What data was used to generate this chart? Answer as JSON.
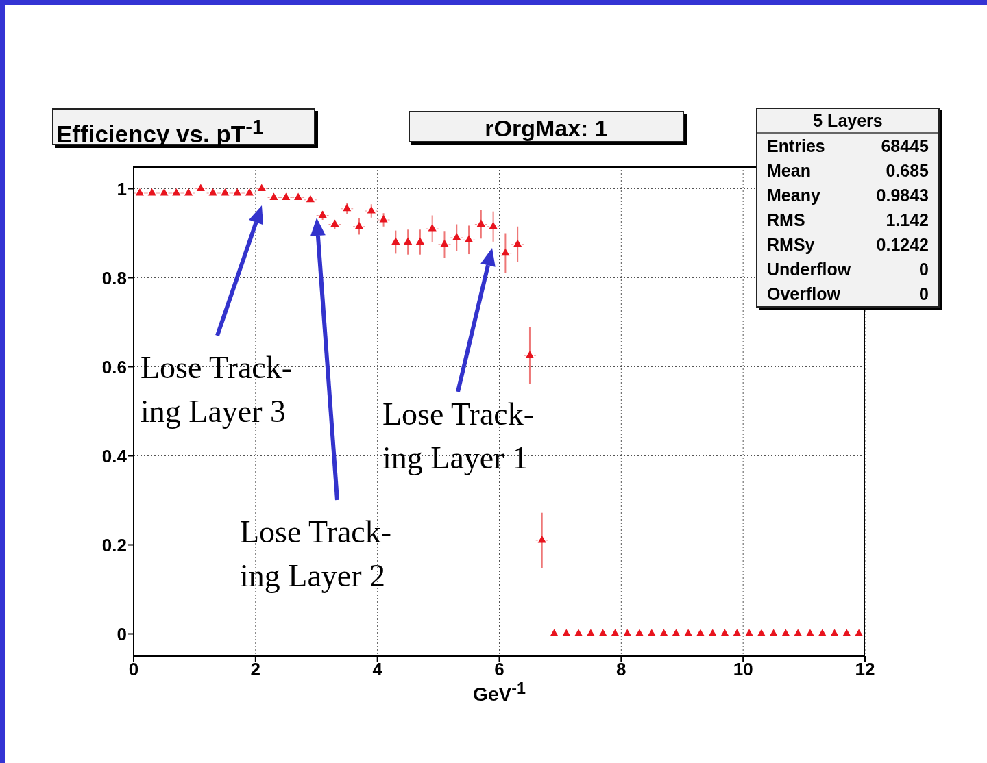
{
  "chart_data": {
    "type": "scatter",
    "title": "Efficiency vs. pT$^{-1}$",
    "subtitle": "rOrgMax: 1",
    "xlabel": "GeV$^{-1}$",
    "x": [
      0.1,
      0.3,
      0.5,
      0.7,
      0.9,
      1.1,
      1.3,
      1.5,
      1.7,
      1.9,
      2.1,
      2.3,
      2.5,
      2.7,
      2.9,
      3.1,
      3.3,
      3.5,
      3.7,
      3.9,
      4.1,
      4.3,
      4.5,
      4.7,
      4.9,
      5.1,
      5.3,
      5.5,
      5.7,
      5.9,
      6.1,
      6.3,
      6.5,
      6.7,
      6.9,
      7.1,
      7.3,
      7.5,
      7.7,
      7.9,
      8.1,
      8.3,
      8.5,
      8.7,
      8.9,
      9.1,
      9.3,
      9.5,
      9.7,
      9.9,
      10.1,
      10.3,
      10.5,
      10.7,
      10.9,
      11.1,
      11.3,
      11.5,
      11.7,
      11.9
    ],
    "series": [
      {
        "color": "#e8141e",
        "values": [
          0.99,
          0.99,
          0.99,
          0.99,
          0.99,
          1.0,
          0.99,
          0.99,
          0.99,
          0.99,
          1.0,
          0.98,
          0.98,
          0.98,
          0.975,
          0.94,
          0.92,
          0.955,
          0.915,
          0.95,
          0.93,
          0.88,
          0.88,
          0.88,
          0.91,
          0.875,
          0.89,
          0.885,
          0.92,
          0.915,
          0.855,
          0.875,
          0.625,
          0.21,
          0,
          0,
          0,
          0,
          0,
          0,
          0,
          0,
          0,
          0,
          0,
          0,
          0,
          0,
          0,
          0,
          0,
          0,
          0,
          0,
          0,
          0,
          0,
          0,
          0,
          0
        ],
        "errors": [
          null,
          null,
          null,
          null,
          null,
          null,
          null,
          null,
          null,
          null,
          null,
          null,
          null,
          null,
          null,
          0.01,
          0.01,
          0.012,
          0.018,
          0.015,
          0.015,
          0.026,
          0.028,
          0.028,
          0.03,
          0.03,
          0.03,
          0.032,
          0.032,
          0.034,
          0.045,
          0.04,
          0.064,
          0.062,
          null,
          null,
          null,
          null,
          null,
          null,
          null,
          null,
          null,
          null,
          null,
          null,
          null,
          null,
          null,
          null,
          null,
          null,
          null,
          null,
          null,
          null,
          null,
          null,
          null,
          null
        ],
        "xerrors": [
          0.1,
          0.1,
          0.1,
          0.1,
          0.1,
          0.1,
          0.1,
          0.1,
          0.1,
          0.1,
          0.1,
          0.1,
          0.1,
          0.1,
          0.1,
          0.1,
          0.1,
          0.1,
          0.1,
          0.1,
          0.1,
          0.1,
          0.1,
          0.1,
          0.1,
          0.1,
          0.1,
          0.1,
          0.1,
          0.1,
          0.1,
          0.1,
          0.1,
          0.1,
          0.1,
          0.1,
          0.1,
          0.1,
          0.1,
          0.1,
          0.1,
          0.1,
          0.1,
          0.1,
          0.1,
          0.1,
          0.1,
          0.1,
          0.1,
          0.1,
          0.1,
          0.1,
          0.1,
          0.1,
          0.1,
          0.1,
          0.1,
          0.1,
          0.1,
          0.1
        ]
      }
    ],
    "xlim": [
      0,
      12
    ],
    "xticks": [
      0,
      2,
      4,
      6,
      8,
      10,
      12
    ],
    "ylim": [
      -0.05,
      1.05
    ],
    "yticks": [
      0,
      0.2,
      0.4,
      0.6,
      0.8,
      1
    ],
    "grid": true,
    "marker": "triangle",
    "legend": false,
    "annotations": [
      "5 Layers",
      "Entries 68445",
      "Mean 0.685",
      "Meany 0.9843",
      "RMS 1.142",
      "RMSy 0.1242",
      "Underflow 0",
      "Overflow 0",
      "Lose Track-\ning Layer 3",
      "Lose Track-\ning Layer 2",
      "Lose Track-\ning Layer 1"
    ]
  }
}
